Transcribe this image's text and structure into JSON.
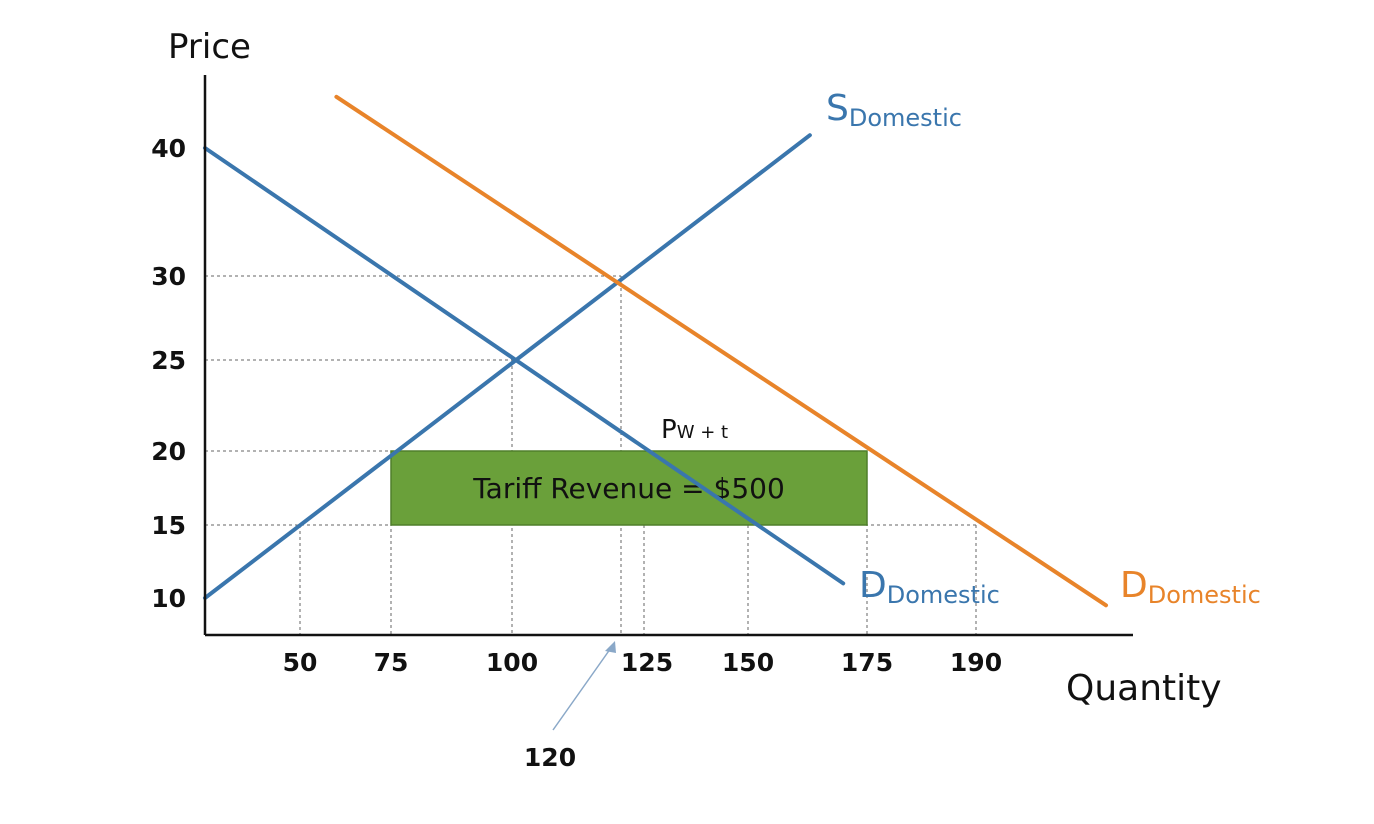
{
  "chart_data": {
    "type": "line",
    "ylabel": "Price",
    "xlabel": "Quantity",
    "y_ticks": [
      10,
      15,
      20,
      25,
      30,
      40
    ],
    "x_ticks": [
      50,
      75,
      100,
      125,
      150,
      175,
      190
    ],
    "series": [
      {
        "name": "S",
        "name_sub": "Domestic",
        "color": "#3a76ad",
        "points": [
          [
            30,
            10
          ],
          [
            163,
            41
          ]
        ]
      },
      {
        "name": "D",
        "name_sub": "Domestic",
        "color": "#3a76ad",
        "points": [
          [
            30,
            40
          ],
          [
            170,
            11
          ]
        ]
      },
      {
        "name": "D",
        "name_sub": "Domestic",
        "color": "#e8842a",
        "points": [
          [
            60,
            44
          ],
          [
            215,
            9.5
          ]
        ]
      }
    ],
    "reference_lines": [
      {
        "price": 30,
        "quantity": 120
      },
      {
        "price": 25,
        "quantity": 100
      },
      {
        "price": 20,
        "quantity": 75
      },
      {
        "price": 15,
        "quantity": 50
      }
    ],
    "vertical_guides": [
      50,
      75,
      100,
      120,
      125,
      150,
      175,
      190
    ],
    "tariff_box": {
      "x0": 75,
      "x1": 175,
      "y0": 15,
      "y1": 20,
      "label": "Tariff Revenue = $500",
      "color": "#6aa03a"
    },
    "price_label": {
      "main": "P",
      "sub": "W",
      "suffix": " + t"
    },
    "annotation": {
      "text": "120",
      "points_to": 120
    }
  }
}
